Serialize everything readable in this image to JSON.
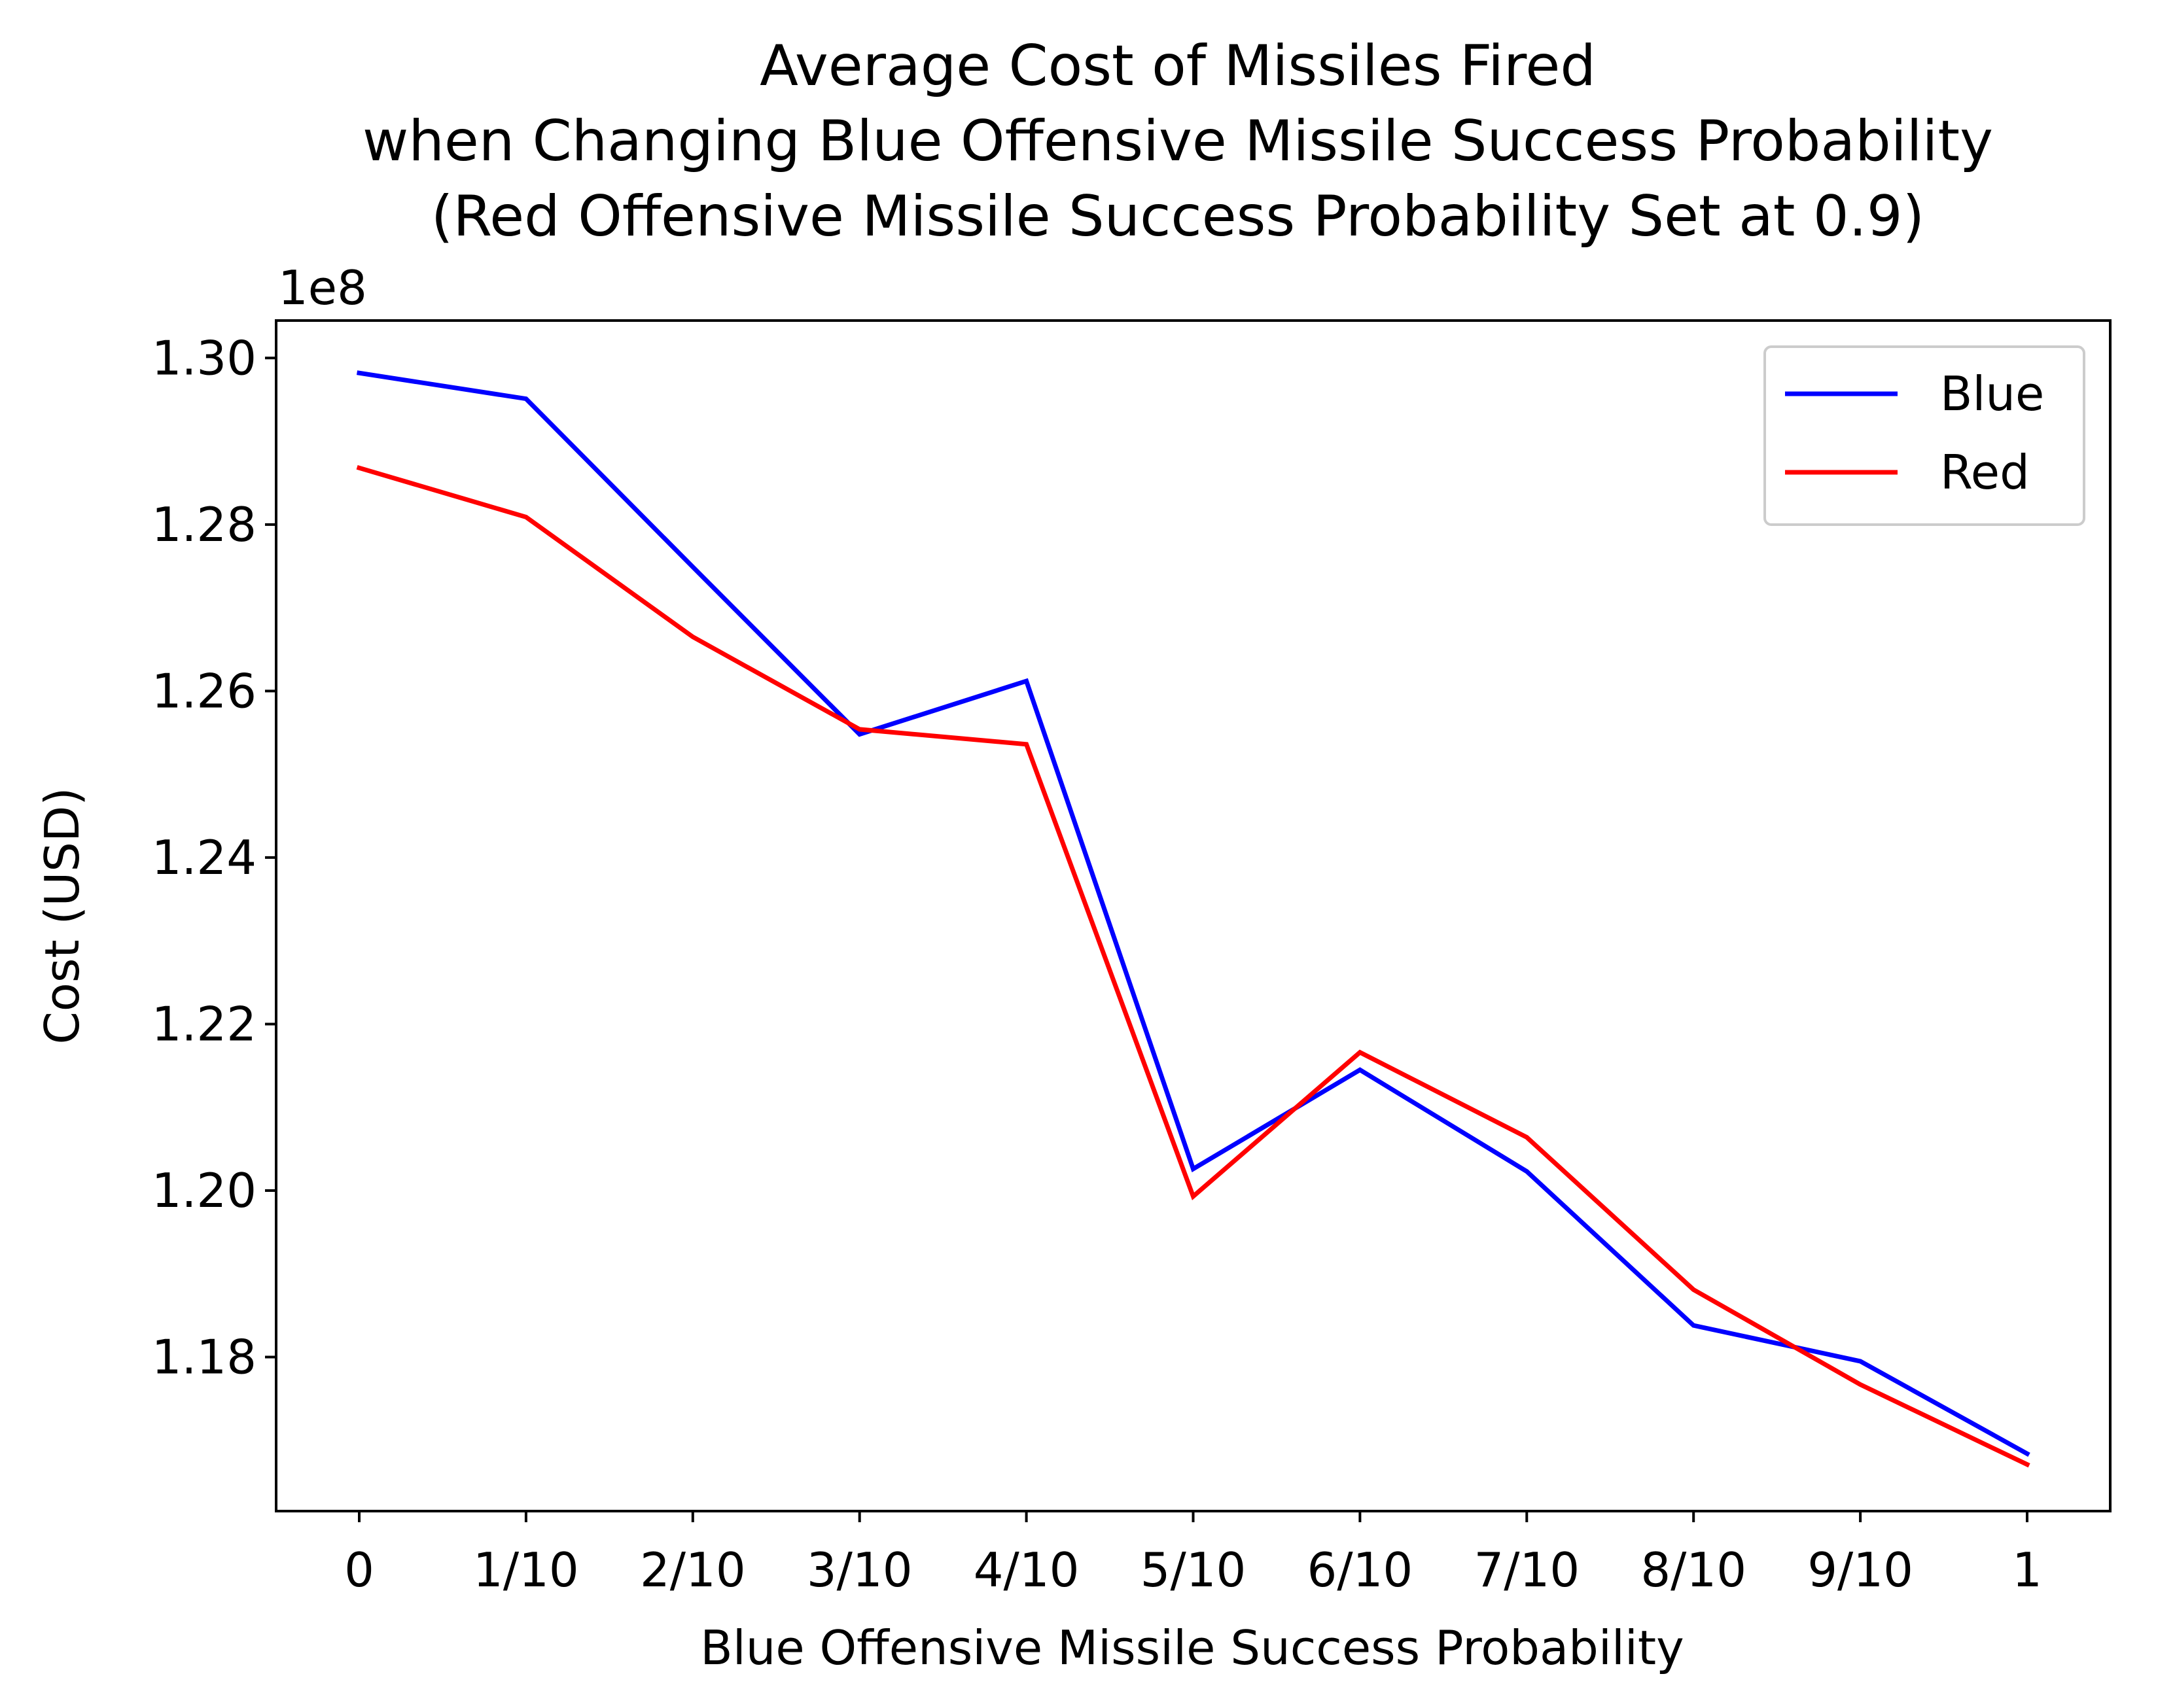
{
  "chart_data": {
    "type": "line",
    "title_lines": [
      "Average Cost of Missiles Fired",
      "when Changing Blue Offensive Missile Success Probability",
      "(Red Offensive Missile Success Probability Set at 0.9)"
    ],
    "xlabel": "Blue Offensive Missile Success Probability",
    "ylabel": "Cost (USD)",
    "y_offset_label": "1e8",
    "categories": [
      "0",
      "1/10",
      "2/10",
      "3/10",
      "4/10",
      "5/10",
      "6/10",
      "7/10",
      "8/10",
      "9/10",
      "1"
    ],
    "yticks": [
      1.18,
      1.2,
      1.22,
      1.24,
      1.26,
      1.28,
      1.3
    ],
    "ytick_labels": [
      "1.18",
      "1.20",
      "1.22",
      "1.24",
      "1.26",
      "1.28",
      "1.30"
    ],
    "ylim": [
      1.1615,
      1.3045
    ],
    "y_multiplier": 100000000,
    "grid": false,
    "legend_position": "top-right",
    "series": [
      {
        "name": "Blue",
        "color": "#0000ff",
        "values": [
          1.2982,
          1.2951,
          1.2749,
          1.2548,
          1.2612,
          1.2026,
          1.2145,
          1.2023,
          1.1838,
          1.1795,
          1.1684
        ]
      },
      {
        "name": "Red",
        "color": "#ff0000",
        "values": [
          1.2868,
          1.2809,
          1.2665,
          1.2554,
          1.2536,
          1.1993,
          1.2166,
          1.2064,
          1.1881,
          1.1767,
          1.1671
        ]
      }
    ]
  }
}
